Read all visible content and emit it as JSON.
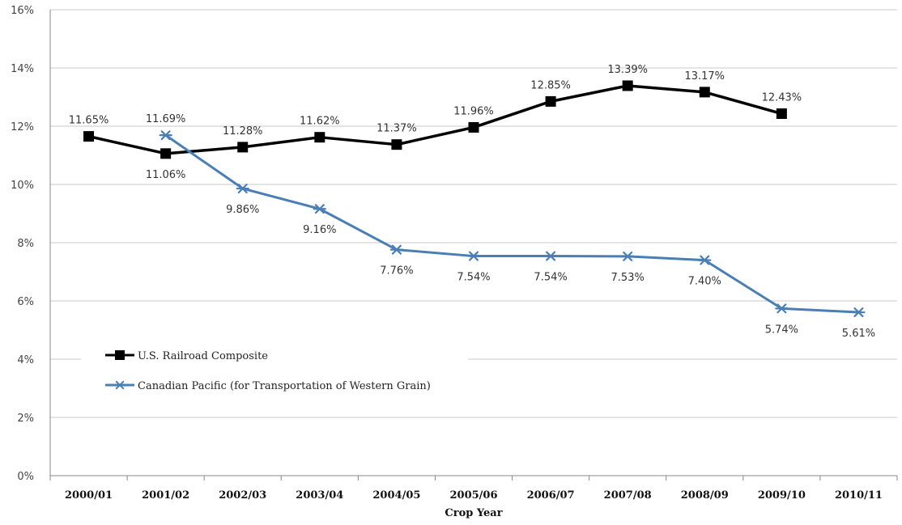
{
  "chart_data": {
    "type": "line",
    "xlabel": "Crop Year",
    "ylabel": "",
    "ylim": [
      0,
      16
    ],
    "yticks": [
      "0%",
      "2%",
      "4%",
      "6%",
      "8%",
      "10%",
      "12%",
      "14%",
      "16%"
    ],
    "grid": true,
    "legend_position": "left",
    "categories": [
      "2000/01",
      "2001/02",
      "2002/03",
      "2003/04",
      "2004/05",
      "2005/06",
      "2006/07",
      "2007/08",
      "2008/09",
      "2009/10",
      "2010/11"
    ],
    "series": [
      {
        "name": "U.S. Railroad Composite",
        "color": "#000000",
        "marker": "square",
        "values": [
          11.65,
          11.06,
          11.28,
          11.62,
          11.37,
          11.96,
          12.85,
          13.39,
          13.17,
          12.43,
          null
        ],
        "labels": [
          "11.65%",
          "11.06%",
          "11.28%",
          "11.62%",
          "11.37%",
          "11.96%",
          "12.85%",
          "13.39%",
          "13.17%",
          "12.43%",
          null
        ]
      },
      {
        "name": "Canadian Pacific (for Transportation of Western Grain)",
        "color": "#4a7fb5",
        "marker": "asterisk",
        "values": [
          null,
          11.69,
          9.86,
          9.16,
          7.76,
          7.54,
          7.54,
          7.53,
          7.4,
          5.74,
          5.61
        ],
        "labels": [
          null,
          "11.69%",
          "9.86%",
          "9.16%",
          "7.76%",
          "7.54%",
          "7.54%",
          "7.53%",
          "7.40%",
          "5.74%",
          "5.61%"
        ]
      }
    ]
  }
}
